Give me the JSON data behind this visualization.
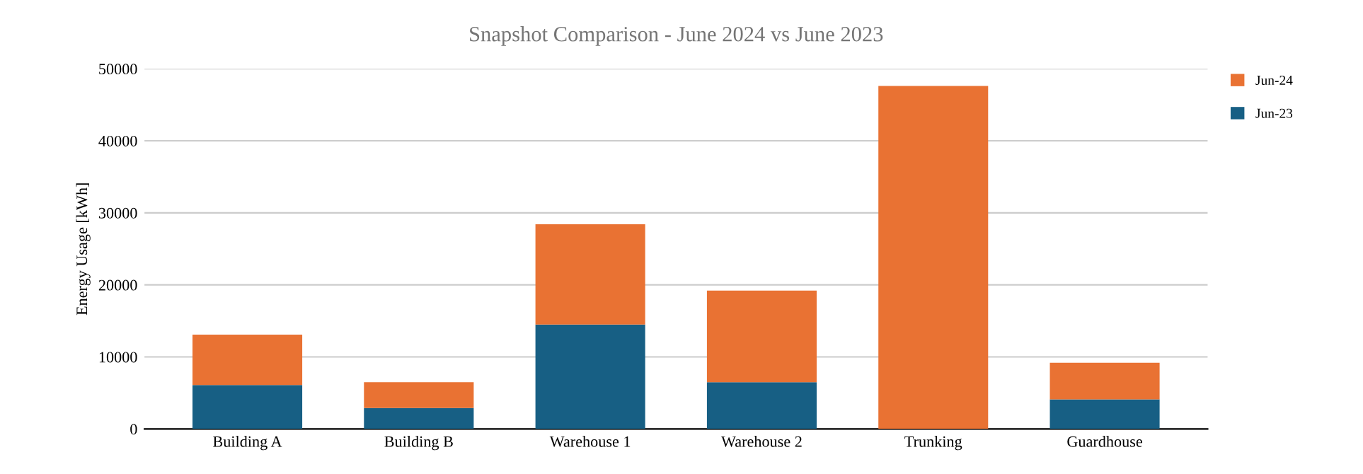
{
  "chart_data": {
    "type": "bar",
    "title": "Snapshot Comparison - June 2024 vs June 2023",
    "ylabel": "Energy Usage [kWh]",
    "categories": [
      "Building A",
      "Building B",
      "Warehouse 1",
      "Warehouse 2",
      "Trunking",
      "Guardhouse"
    ],
    "stacked": true,
    "series": [
      {
        "name": "Jun-23",
        "color": "#175f84",
        "values": [
          6100,
          2900,
          14500,
          6500,
          0,
          4100
        ]
      },
      {
        "name": "Jun-24",
        "color": "#e97233",
        "values": [
          7000,
          3600,
          13900,
          12700,
          47600,
          5100
        ]
      }
    ],
    "ylim": [
      0,
      50000
    ],
    "yticks": [
      0,
      10000,
      20000,
      30000,
      40000,
      50000
    ],
    "grid": "y",
    "legend": "top right"
  }
}
